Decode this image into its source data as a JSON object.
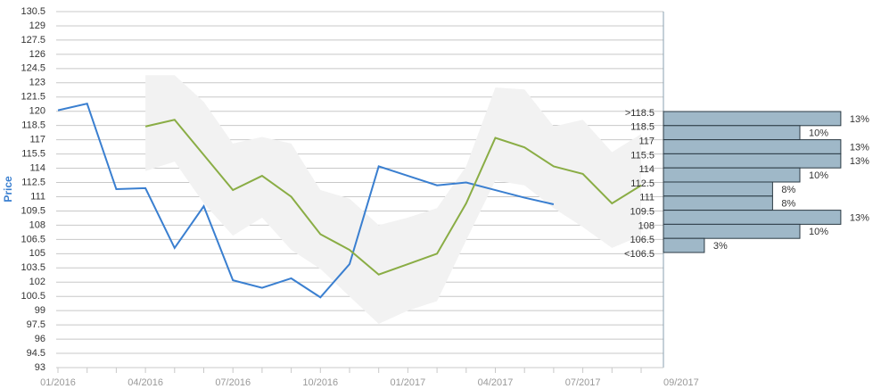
{
  "chart_data": [
    {
      "type": "line",
      "y_label": "Price",
      "categories": [
        "01/2016",
        null,
        null,
        "04/2016",
        null,
        null,
        "07/2016",
        null,
        null,
        "10/2016",
        null,
        null,
        "01/2017",
        null,
        null,
        "04/2017",
        null,
        null,
        "07/2017",
        null,
        "09/2017"
      ],
      "ylim": [
        93,
        130.5
      ],
      "yticks": [
        93,
        94.5,
        96,
        97.5,
        99,
        100.5,
        102,
        103.5,
        105,
        106.5,
        108,
        109.5,
        111,
        112.5,
        114,
        115.5,
        117,
        118.5,
        120,
        121.5,
        123,
        124.5,
        126,
        127.5,
        129,
        130.5
      ],
      "grid": true,
      "band": {
        "color": "#f2f2f2",
        "upper": [
          null,
          null,
          null,
          123.8,
          123.8,
          121.0,
          116.6,
          117.3,
          116.6,
          111.7,
          110.8,
          108.0,
          108.8,
          109.8,
          114.2,
          122.5,
          122.3,
          118.4,
          119.1,
          115.7,
          117.6
        ],
        "lower": [
          null,
          null,
          null,
          113.7,
          114.7,
          110.3,
          106.9,
          108.8,
          105.4,
          103.4,
          100.5,
          97.6,
          99.0,
          100.0,
          106.4,
          112.7,
          112.2,
          109.8,
          107.8,
          105.6,
          106.9
        ]
      },
      "series": [
        {
          "color": "#3a7fd0",
          "values": [
            120.1,
            120.8,
            111.8,
            111.9,
            105.6,
            110.0,
            102.2,
            101.4,
            102.4,
            100.4,
            103.9,
            114.2,
            113.2,
            112.2,
            112.5,
            111.7,
            110.9,
            110.2,
            null,
            null,
            null
          ]
        },
        {
          "color": "#8aad45",
          "values": [
            null,
            null,
            null,
            118.4,
            119.1,
            115.4,
            111.7,
            113.2,
            111.0,
            107.05,
            105.4,
            102.8,
            103.9,
            105.0,
            110.3,
            117.2,
            116.2,
            114.2,
            113.4,
            110.3,
            112.2
          ]
        }
      ]
    },
    {
      "type": "histogram",
      "bins": [
        ">118.5",
        "118.5",
        "117",
        "115.5",
        "114",
        "112.5",
        "111",
        "109.5",
        "108",
        "106.5",
        "<106.5"
      ],
      "values": [
        13,
        10,
        13,
        13,
        10,
        8,
        8,
        13,
        10,
        3
      ],
      "value_labels": [
        "13%",
        "10%",
        "13%",
        "13%",
        "10%",
        "8%",
        "8%",
        "13%",
        "10%",
        "3%"
      ],
      "color": "#9fb8c8"
    }
  ]
}
